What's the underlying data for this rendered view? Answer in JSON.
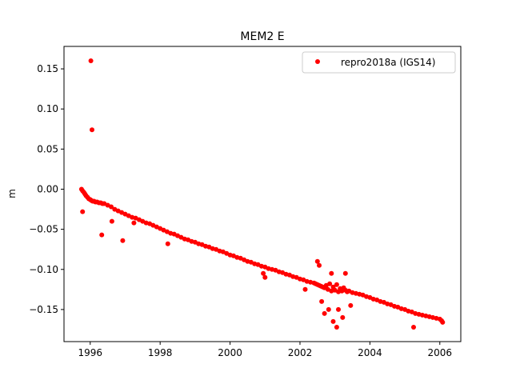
{
  "chart_data": {
    "type": "scatter",
    "title": "MEM2 E",
    "xlabel": "",
    "ylabel": "m",
    "xlim": [
      1995.25,
      2006.6
    ],
    "ylim": [
      -0.19,
      0.178
    ],
    "x_ticks": [
      1996,
      1998,
      2000,
      2002,
      2004,
      2006
    ],
    "x_tick_labels": [
      "1996",
      "1998",
      "2000",
      "2002",
      "2004",
      "2006"
    ],
    "y_ticks": [
      0.15,
      0.1,
      0.05,
      0.0,
      -0.05,
      -0.1,
      -0.15
    ],
    "y_tick_labels": [
      "0.15",
      "0.10",
      "0.05",
      "0.00",
      "−0.05",
      "−0.10",
      "−0.15"
    ],
    "grid": false,
    "legend_position": "top-right",
    "series": [
      {
        "name": "repro2018a (IGS14)",
        "color": "#ff0000",
        "marker": "circle",
        "x": [
          1995.75,
          1995.78,
          1995.82,
          1995.85,
          1995.88,
          1995.92,
          1995.96,
          1996.0,
          1996.03,
          1996.07,
          1996.11,
          1996.15,
          1996.2,
          1996.25,
          1996.3,
          1996.35,
          1996.4,
          1996.5,
          1996.6,
          1996.7,
          1996.8,
          1996.9,
          1997.0,
          1997.1,
          1997.2,
          1997.3,
          1997.4,
          1997.5,
          1997.6,
          1997.7,
          1997.8,
          1997.9,
          1998.0,
          1998.1,
          1998.2,
          1998.3,
          1998.4,
          1998.5,
          1998.6,
          1998.7,
          1998.8,
          1998.9,
          1999.0,
          1999.1,
          1999.2,
          1999.3,
          1999.4,
          1999.5,
          1999.6,
          1999.7,
          1999.8,
          1999.9,
          2000.0,
          2000.1,
          2000.2,
          2000.3,
          2000.4,
          2000.5,
          2000.6,
          2000.7,
          2000.8,
          2000.9,
          2001.0,
          2001.1,
          2001.2,
          2001.3,
          2001.4,
          2001.5,
          2001.6,
          2001.7,
          2001.8,
          2001.9,
          2002.0,
          2002.1,
          2002.2,
          2002.3,
          2002.4,
          2002.45,
          2002.5,
          2002.55,
          2002.6,
          2002.65,
          2002.7,
          2002.75,
          2002.8,
          2002.85,
          2002.9,
          2002.95,
          2003.0,
          2003.05,
          2003.1,
          2003.15,
          2003.2,
          2003.25,
          2003.3,
          2003.35,
          2003.4,
          2003.5,
          2003.6,
          2003.7,
          2003.8,
          2003.9,
          2004.0,
          2004.1,
          2004.2,
          2004.3,
          2004.4,
          2004.5,
          2004.6,
          2004.7,
          2004.8,
          2004.9,
          2005.0,
          2005.1,
          2005.2,
          2005.3,
          2005.4,
          2005.5,
          2005.6,
          2005.7,
          2005.8,
          2005.9,
          2006.0,
          2006.05,
          2006.08,
          1995.78,
          1996.02,
          1996.05,
          1996.33,
          1996.62,
          1996.93,
          1997.25,
          1998.22,
          2000.95,
          2001.0,
          2002.15,
          2002.55,
          2002.62,
          2002.82,
          2002.95,
          2003.05,
          2003.22,
          2002.5,
          2002.7,
          2002.9,
          2003.1,
          2003.3,
          2003.45,
          2005.25
        ],
        "y": [
          0.0,
          -0.002,
          -0.004,
          -0.006,
          -0.008,
          -0.01,
          -0.012,
          -0.013,
          -0.014,
          -0.015,
          -0.015,
          -0.016,
          -0.016,
          -0.017,
          -0.017,
          -0.018,
          -0.018,
          -0.02,
          -0.022,
          -0.025,
          -0.027,
          -0.029,
          -0.031,
          -0.033,
          -0.035,
          -0.036,
          -0.038,
          -0.04,
          -0.042,
          -0.043,
          -0.045,
          -0.047,
          -0.049,
          -0.051,
          -0.053,
          -0.055,
          -0.056,
          -0.058,
          -0.06,
          -0.062,
          -0.063,
          -0.065,
          -0.066,
          -0.068,
          -0.069,
          -0.071,
          -0.072,
          -0.074,
          -0.075,
          -0.077,
          -0.078,
          -0.08,
          -0.082,
          -0.083,
          -0.085,
          -0.086,
          -0.088,
          -0.09,
          -0.091,
          -0.093,
          -0.094,
          -0.096,
          -0.097,
          -0.099,
          -0.1,
          -0.101,
          -0.103,
          -0.104,
          -0.106,
          -0.107,
          -0.109,
          -0.11,
          -0.112,
          -0.113,
          -0.115,
          -0.116,
          -0.117,
          -0.118,
          -0.119,
          -0.12,
          -0.121,
          -0.122,
          -0.123,
          -0.12,
          -0.125,
          -0.118,
          -0.127,
          -0.122,
          -0.126,
          -0.119,
          -0.128,
          -0.124,
          -0.127,
          -0.123,
          -0.126,
          -0.128,
          -0.127,
          -0.129,
          -0.13,
          -0.131,
          -0.132,
          -0.134,
          -0.135,
          -0.137,
          -0.138,
          -0.14,
          -0.141,
          -0.143,
          -0.144,
          -0.146,
          -0.147,
          -0.149,
          -0.15,
          -0.152,
          -0.153,
          -0.155,
          -0.156,
          -0.157,
          -0.158,
          -0.159,
          -0.16,
          -0.161,
          -0.162,
          -0.164,
          -0.166,
          -0.028,
          0.16,
          0.074,
          -0.057,
          -0.04,
          -0.064,
          -0.042,
          -0.068,
          -0.105,
          -0.11,
          -0.125,
          -0.095,
          -0.14,
          -0.15,
          -0.165,
          -0.172,
          -0.16,
          -0.09,
          -0.155,
          -0.105,
          -0.15,
          -0.105,
          -0.145,
          -0.172
        ]
      }
    ]
  }
}
